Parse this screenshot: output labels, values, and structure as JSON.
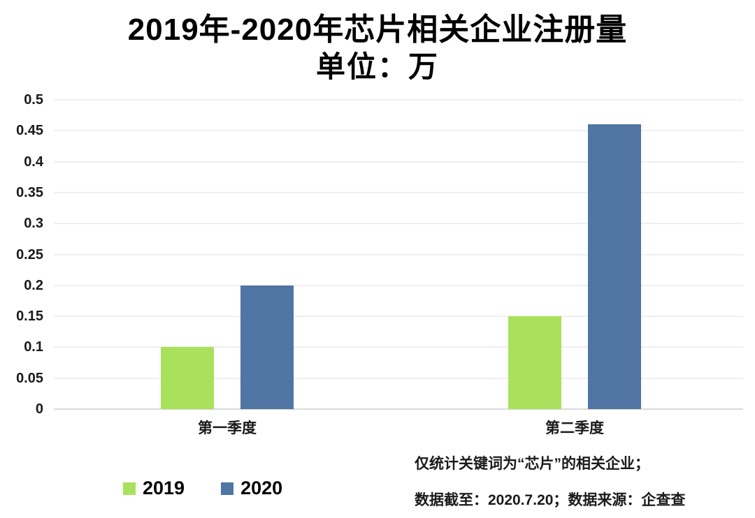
{
  "title": {
    "line1": "2019年-2020年芯片相关企业注册量",
    "line2": "单位：万"
  },
  "chart_data": {
    "type": "bar",
    "title": "2019年-2020年芯片相关企业注册量",
    "subtitle": "单位：万",
    "categories": [
      "第一季度",
      "第二季度"
    ],
    "series": [
      {
        "name": "2019",
        "color": "#a9e15c",
        "values": [
          0.1,
          0.15
        ]
      },
      {
        "name": "2020",
        "color": "#5074a3",
        "values": [
          0.2,
          0.46
        ]
      }
    ],
    "xlabel": "",
    "ylabel": "",
    "ylim": [
      0,
      0.5
    ],
    "yticks": [
      {
        "value": 0,
        "label": "0"
      },
      {
        "value": 0.05,
        "label": "0.05"
      },
      {
        "value": 0.1,
        "label": "0.1"
      },
      {
        "value": 0.15,
        "label": "0.15"
      },
      {
        "value": 0.2,
        "label": "0.2"
      },
      {
        "value": 0.25,
        "label": "0.25"
      },
      {
        "value": 0.3,
        "label": "0.3"
      },
      {
        "value": 0.35,
        "label": "0.35"
      },
      {
        "value": 0.4,
        "label": "0.4"
      },
      {
        "value": 0.45,
        "label": "0.45"
      },
      {
        "value": 0.5,
        "label": "0.5"
      }
    ],
    "grid": "horizontal",
    "legend_position": "bottom-left"
  },
  "legend": {
    "items": [
      {
        "label": "2019",
        "color": "#a9e15c"
      },
      {
        "label": "2020",
        "color": "#5074a3"
      }
    ]
  },
  "footnote": {
    "line1": "仅统计关键词为“芯片”的相关企业；",
    "line2": "数据截至：2020.7.20；数据来源：企查查"
  }
}
